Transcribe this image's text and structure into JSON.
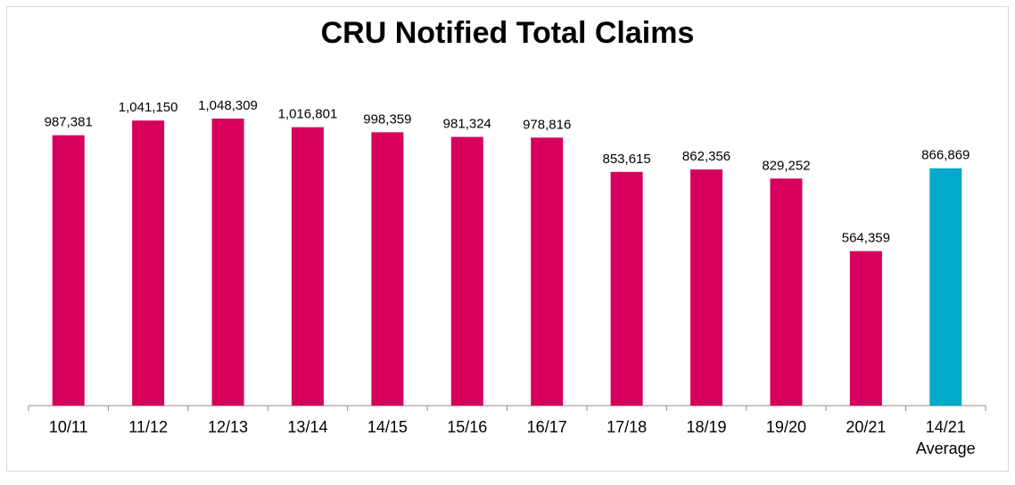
{
  "chart_data": {
    "type": "bar",
    "title": "CRU Notified Total Claims",
    "xlabel": "",
    "ylabel": "",
    "ylim": [
      0,
      1100000
    ],
    "grid": false,
    "legend": "none",
    "categories": [
      "10/11",
      "11/12",
      "12/13",
      "13/14",
      "14/15",
      "15/16",
      "16/17",
      "17/18",
      "18/19",
      "19/20",
      "20/21",
      "14/21 Average"
    ],
    "values": [
      987381,
      1041150,
      1048309,
      1016801,
      998359,
      981324,
      978816,
      853615,
      862356,
      829252,
      564359,
      866869
    ],
    "data_labels": [
      "987,381",
      "1,041,150",
      "1,048,309",
      "1,016,801",
      "998,359",
      "981,324",
      "978,816",
      "853,615",
      "862,356",
      "829,252",
      "564,359",
      "866,869"
    ],
    "bar_colors": [
      "#d6005c",
      "#d6005c",
      "#d6005c",
      "#d6005c",
      "#d6005c",
      "#d6005c",
      "#d6005c",
      "#d6005c",
      "#d6005c",
      "#d6005c",
      "#d6005c",
      "#00aacc"
    ]
  }
}
